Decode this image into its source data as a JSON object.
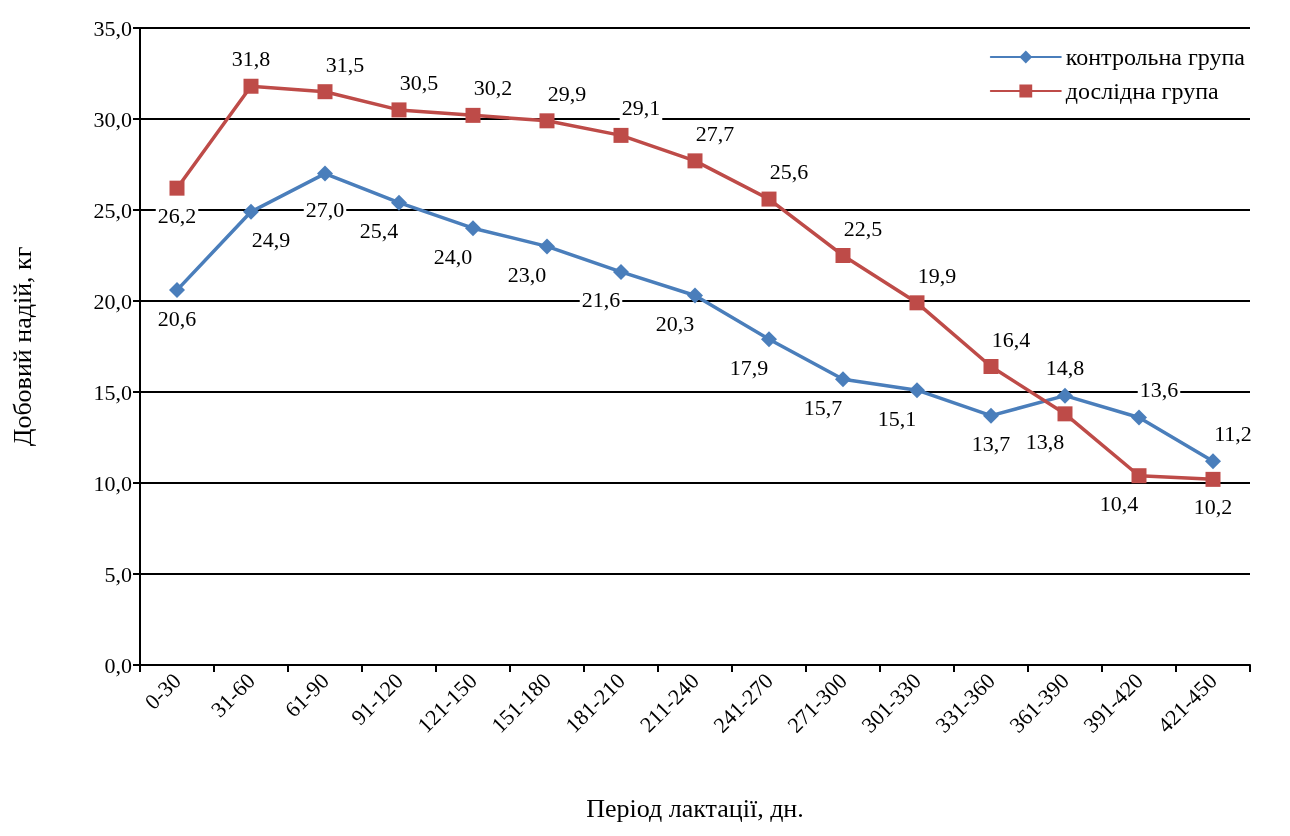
{
  "chart_data": {
    "type": "line",
    "xlabel": "Період лактації, дн.",
    "ylabel": "Добовий надій, кг",
    "categories": [
      "0-30",
      "31-60",
      "61-90",
      "91-120",
      "121-150",
      "151-180",
      "181-210",
      "211-240",
      "241-270",
      "271-300",
      "301-330",
      "331-360",
      "361-390",
      "391-420",
      "421-450"
    ],
    "series": [
      {
        "name": "контрольна група",
        "color": "#4a7ebb",
        "marker": "diamond",
        "values": [
          20.6,
          24.9,
          27.0,
          25.4,
          24.0,
          23.0,
          21.6,
          20.3,
          17.9,
          15.7,
          15.1,
          13.7,
          14.8,
          13.6,
          11.2
        ],
        "value_labels": [
          "20,6",
          "24,9",
          "27,0",
          "25,4",
          "24,0",
          "23,0",
          "21,6",
          "20,3",
          "17,9",
          "15,7",
          "15,1",
          "13,7",
          "14,8",
          "13,6",
          "11,2"
        ]
      },
      {
        "name": "дослідна група",
        "color": "#be4b48",
        "marker": "square",
        "values": [
          26.2,
          31.8,
          31.5,
          30.5,
          30.2,
          29.9,
          29.1,
          27.7,
          25.6,
          22.5,
          19.9,
          16.4,
          13.8,
          10.4,
          10.2
        ],
        "value_labels": [
          "26,2",
          "31,8",
          "31,5",
          "30,5",
          "30,2",
          "29,9",
          "29,1",
          "27,7",
          "25,6",
          "22,5",
          "19,9",
          "16,4",
          "13,8",
          "10,4",
          "10,2"
        ]
      }
    ],
    "ylim": [
      0,
      35
    ],
    "yticks": [
      {
        "value": 0,
        "label": "0,0"
      },
      {
        "value": 5,
        "label": "5,0"
      },
      {
        "value": 10,
        "label": "10,0"
      },
      {
        "value": 15,
        "label": "15,0"
      },
      {
        "value": 20,
        "label": "20,0"
      },
      {
        "value": 25,
        "label": "25,0"
      },
      {
        "value": 30,
        "label": "30,0"
      },
      {
        "value": 35,
        "label": "35,0"
      }
    ],
    "grid": "y",
    "legend": "top right",
    "line_style": "solid"
  }
}
